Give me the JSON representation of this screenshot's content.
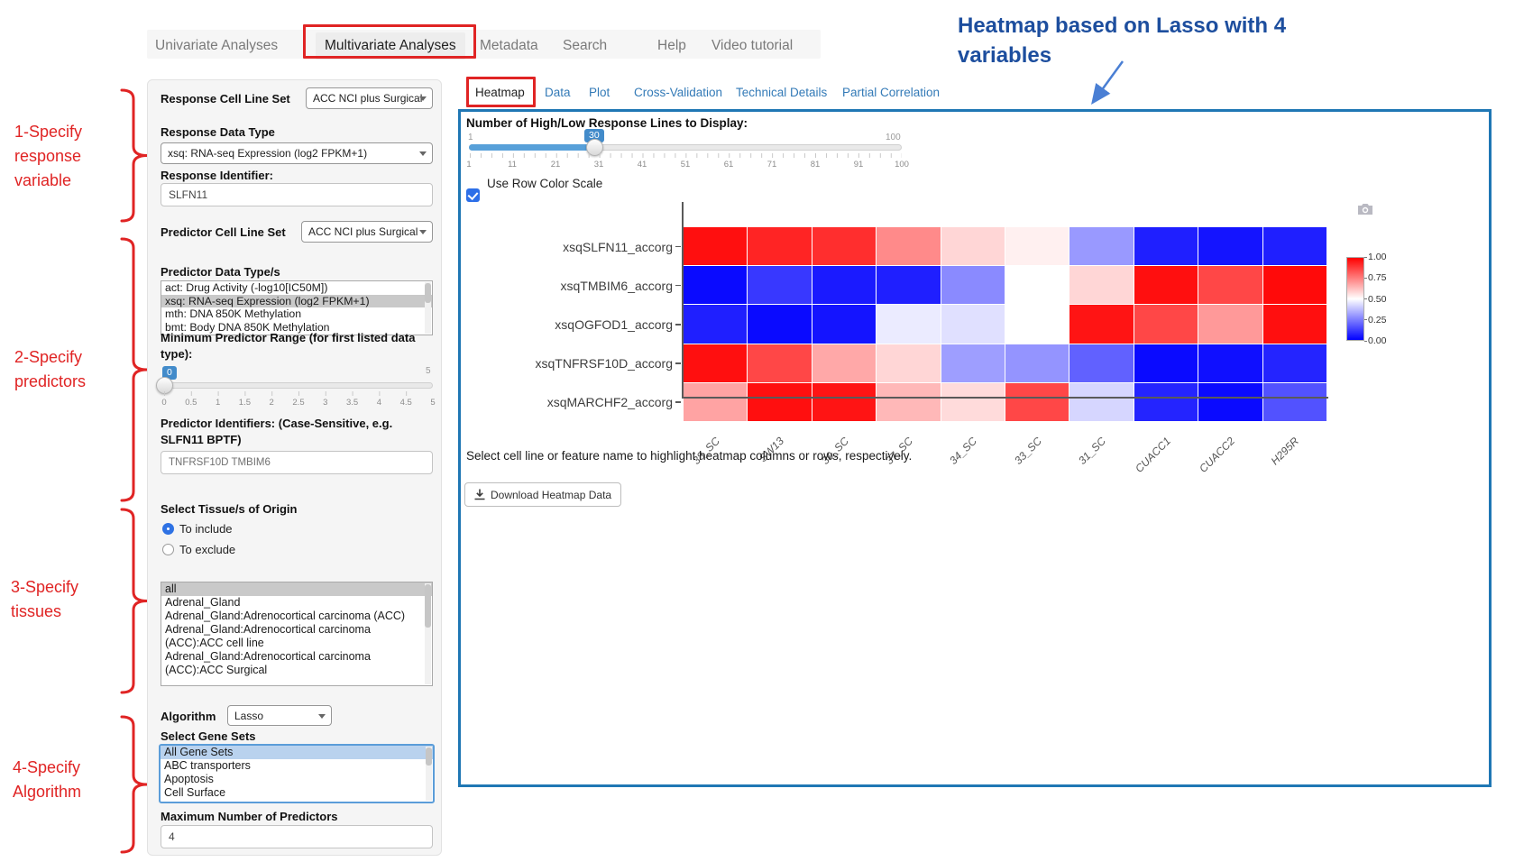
{
  "nav": {
    "items": [
      "Univariate Analyses",
      "Multivariate Analyses",
      "Metadata",
      "Search",
      "Help",
      "Video tutorial"
    ],
    "active": "Multivariate Analyses"
  },
  "step_annotations": [
    {
      "lines": [
        "1-Specify",
        "response",
        "variable"
      ]
    },
    {
      "lines": [
        "2-Specify",
        "predictors"
      ]
    },
    {
      "lines": [
        "3-Specify",
        "tissues"
      ]
    },
    {
      "lines": [
        "4-Specify",
        "Algorithm"
      ]
    }
  ],
  "callout": {
    "text": "Heatmap based on Lasso with 4 variables"
  },
  "annotation_colors": {
    "red": "#e02424",
    "blue": "#1d4e9e",
    "arrow_blue": "#4a7fd4"
  },
  "sidebar": {
    "response_cell_line_set": {
      "label": "Response Cell Line Set",
      "value": "ACC NCI plus Surgical"
    },
    "response_data_type": {
      "label": "Response Data Type",
      "value": "xsq: RNA-seq Expression (log2 FPKM+1)"
    },
    "response_identifier": {
      "label": "Response Identifier:",
      "value": "SLFN11"
    },
    "predictor_cell_line_set": {
      "label": "Predictor Cell Line Set",
      "value": "ACC NCI plus Surgical"
    },
    "predictor_data_types": {
      "label": "Predictor Data Type/s",
      "options": [
        "act: Drug Activity (-log10[IC50M])",
        "xsq: RNA-seq Expression (log2 FPKM+1)",
        "mth: DNA 850K Methylation",
        "bmt: Body DNA 850K Methylation"
      ],
      "selected_index": 1
    },
    "min_predictor_range": {
      "label": "Minimum Predictor Range (for first listed data type):",
      "value": "0",
      "max_label": "5",
      "ticks": [
        "0",
        "0.5",
        "1",
        "1.5",
        "2",
        "2.5",
        "3",
        "3.5",
        "4",
        "4.5",
        "5"
      ]
    },
    "predictor_identifiers": {
      "label": "Predictor Identifiers: (Case-Sensitive, e.g. SLFN11 BPTF)",
      "value": "TNFRSF10D TMBIM6"
    },
    "tissues": {
      "label": "Select Tissue/s of Origin",
      "radio_include": "To include",
      "radio_exclude": "To exclude",
      "selected_radio": "To include",
      "options": [
        "all",
        "Adrenal_Gland",
        "Adrenal_Gland:Adrenocortical carcinoma (ACC)",
        "Adrenal_Gland:Adrenocortical carcinoma (ACC):ACC cell line",
        "Adrenal_Gland:Adrenocortical carcinoma (ACC):ACC Surgical"
      ],
      "selected_index": 0
    },
    "algorithm": {
      "label": "Algorithm",
      "value": "Lasso"
    },
    "gene_sets": {
      "label": "Select Gene Sets",
      "options": [
        "All Gene Sets",
        "ABC transporters",
        "Apoptosis",
        "Cell Surface"
      ],
      "selected_index": 0
    },
    "max_predictors": {
      "label": "Maximum Number of Predictors",
      "value": "4"
    }
  },
  "main": {
    "tabs": [
      "Heatmap",
      "Data",
      "Plot",
      "Cross-Validation",
      "Technical Details",
      "Partial Correlation"
    ],
    "active_tab": "Heatmap",
    "lines_slider": {
      "label": "Number of High/Low Response Lines to Display:",
      "value": "30",
      "min_label": "1",
      "max_label": "100",
      "tick_labels": [
        "1",
        "11",
        "21",
        "31",
        "41",
        "51",
        "61",
        "71",
        "81",
        "91",
        "100"
      ]
    },
    "row_color_scale_label": "Use Row Color Scale",
    "row_color_scale_checked": true,
    "hint": "Select cell line or feature name to highlight heatmap columns or rows, respectively.",
    "download_button_label": "Download Heatmap Data"
  },
  "chart_data": {
    "type": "heatmap",
    "rows": [
      "xsqSLFN11_accorg",
      "xsqTMBIM6_accorg",
      "xsqOGFOD1_accorg",
      "xsqTNFRSF10D_accorg",
      "xsqMARCHF2_accorg"
    ],
    "columns": [
      "38_SC",
      "SW13",
      "30_SC",
      "37_SC",
      "34_SC",
      "33_SC",
      "31_SC",
      "CUACC1",
      "CUACC2",
      "H295R"
    ],
    "values": [
      [
        0.97,
        0.93,
        0.91,
        0.73,
        0.58,
        0.53,
        0.3,
        0.06,
        0.04,
        0.06
      ],
      [
        0.02,
        0.11,
        0.05,
        0.06,
        0.27,
        0.5,
        0.58,
        0.97,
        0.86,
        0.98
      ],
      [
        0.06,
        0.02,
        0.04,
        0.46,
        0.44,
        0.5,
        0.96,
        0.86,
        0.7,
        0.97
      ],
      [
        0.97,
        0.86,
        0.67,
        0.58,
        0.31,
        0.29,
        0.19,
        0.02,
        0.03,
        0.07
      ],
      [
        0.68,
        0.97,
        0.96,
        0.64,
        0.57,
        0.86,
        0.42,
        0.07,
        0.02,
        0.16
      ]
    ],
    "value_range": [
      0,
      1
    ],
    "row_normalized": true,
    "colorbar": {
      "tick_labels": [
        "1.00",
        "0.75",
        "0.50",
        "0.25",
        "0.00"
      ],
      "high_color": "#ff0000",
      "mid_color": "#ffffff",
      "low_color": "#0000ff"
    }
  }
}
